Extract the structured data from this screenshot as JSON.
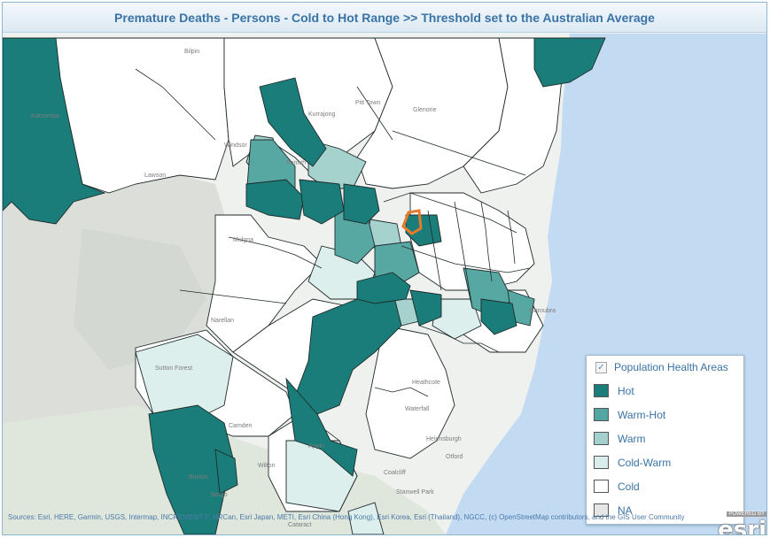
{
  "title": "Premature Deaths - Persons - Cold to Hot Range >>  Threshold set to the Australian Average",
  "legend": {
    "layer_name": "Population Health Areas",
    "layer_checked": true,
    "items": [
      {
        "label": "Hot",
        "color": "#1b7d7a"
      },
      {
        "label": "Warm-Hot",
        "color": "#54a6a2"
      },
      {
        "label": "Warm",
        "color": "#a3d0cd"
      },
      {
        "label": "Cold-Warm",
        "color": "#d9eeec"
      },
      {
        "label": "Cold",
        "color": "#ffffff"
      },
      {
        "label": "NA",
        "color": "#e6e6e6"
      }
    ]
  },
  "place_labels": [
    "Katoomba",
    "Mulgoa",
    "Penrith",
    "Windsor",
    "Appin",
    "Camden",
    "Bargo",
    "Buxton",
    "Wilton",
    "Waterfall",
    "Heathcote",
    "Helensburgh",
    "Otford",
    "Coalcliff",
    "Lawson",
    "Bilpin",
    "Kurrajong",
    "Pitt Town",
    "Glenorie",
    "Sutton Forest",
    "Narellan",
    "Maroubra",
    "Stanwell Park",
    "Cataract"
  ],
  "attribution": "Sources: Esri, HERE, Garmin, USGS, Intermap, INCREMENT P, NRCan, Esri Japan, METI, Esri China (Hong Kong), Esri Korea, Esri (Thailand), NGCC, (c) OpenStreetMap contributors, and the GIS User Community",
  "logo": {
    "powered": "POWERED BY",
    "word": "esri"
  },
  "colors": {
    "ocean": "#bcd7f2",
    "land": "#eef2ee",
    "park": "#d9e3d7",
    "highlight": "#e57a2b"
  }
}
